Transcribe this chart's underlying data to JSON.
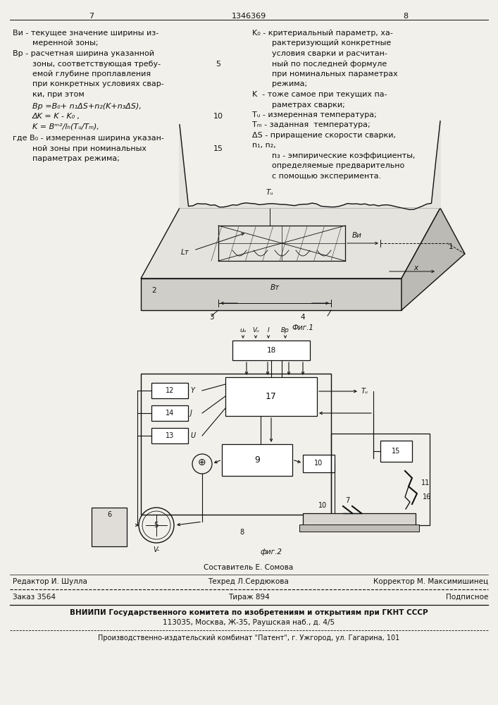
{
  "page_number_left": "7",
  "page_number_center": "1346369",
  "page_number_right": "8",
  "bg_color": "#f2f0eb",
  "text_color": "#111111",
  "fig1_caption": "Фиг.1",
  "fig2_caption": "фиг.2",
  "footer_compiler_label": "Составитель Е. Сомова",
  "footer_editor": "Редактор И. Шулла",
  "footer_techred": "Техред Л.Сердюкова",
  "footer_corrector": "Корректор М. Максимишинец",
  "footer_order": "Заказ 3564",
  "footer_tirazh": "Тираж 894",
  "footer_podpisnoe": "Подписное",
  "footer_vniipи": "ВНИИПИ Государственного комитета по изобретениям и открытиям при ГКНТ СССР",
  "footer_address": "113035, Москва, Ж-35, Раушская наб., д. 4/5",
  "footer_patent": "Производственно-издательский комбинат \"Патент\", г. Ужгород, ул. Гагарина, 101"
}
